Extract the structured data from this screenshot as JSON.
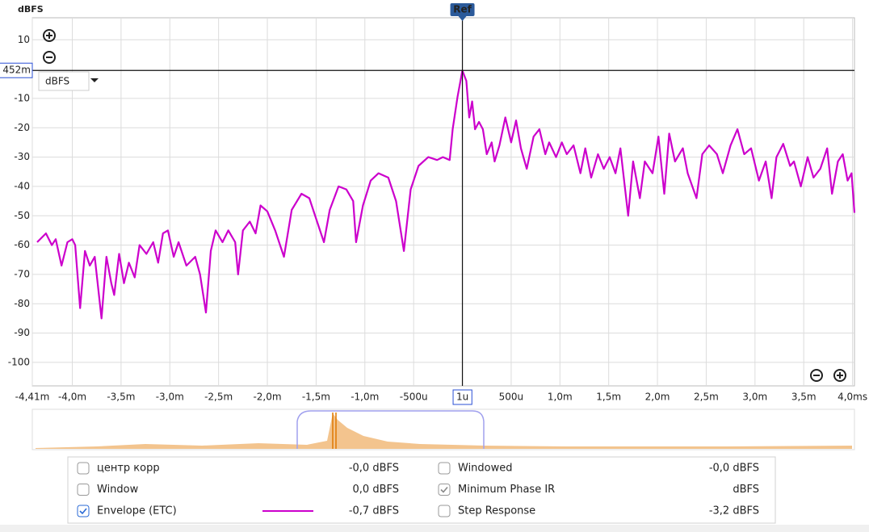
{
  "chart_data": {
    "type": "line",
    "y_label": "dBFS",
    "ref_label": "Ref",
    "dropdown": "dBFS",
    "cursor": {
      "x": 0,
      "y": -0.452,
      "y_label": "452m"
    },
    "xlim": [
      -4.41,
      4.02
    ],
    "ylim": [
      -108,
      17.5
    ],
    "xticks": [
      {
        "value": -4.41,
        "label": "-4,41m"
      },
      {
        "value": -4.0,
        "label": "-4,0m"
      },
      {
        "value": -3.5,
        "label": "-3,5m"
      },
      {
        "value": -3.0,
        "label": "-3,0m"
      },
      {
        "value": -2.5,
        "label": "-2,5m"
      },
      {
        "value": -2.0,
        "label": "-2,0m"
      },
      {
        "value": -1.5,
        "label": "-1,5m"
      },
      {
        "value": -1.0,
        "label": "-1,0m"
      },
      {
        "value": -0.5,
        "label": "-500u"
      },
      {
        "value": 0.001,
        "label": "1u",
        "boxed": true
      },
      {
        "value": 0.5,
        "label": "500u"
      },
      {
        "value": 1.0,
        "label": "1,0m"
      },
      {
        "value": 1.5,
        "label": "1,5m"
      },
      {
        "value": 2.0,
        "label": "2,0m"
      },
      {
        "value": 2.5,
        "label": "2,5m"
      },
      {
        "value": 3.0,
        "label": "3,0m"
      },
      {
        "value": 3.5,
        "label": "3,5m"
      },
      {
        "value": 4.0,
        "label": "4,0ms"
      }
    ],
    "yticks": [
      10,
      -10,
      -20,
      -30,
      -40,
      -50,
      -60,
      -70,
      -80,
      -90,
      -100
    ],
    "grid": true,
    "x": [
      -4.36,
      -4.27,
      -4.21,
      -4.17,
      -4.11,
      -4.05,
      -4.0,
      -3.97,
      -3.92,
      -3.87,
      -3.82,
      -3.77,
      -3.7,
      -3.65,
      -3.6,
      -3.57,
      -3.52,
      -3.47,
      -3.42,
      -3.36,
      -3.31,
      -3.24,
      -3.17,
      -3.12,
      -3.07,
      -3.02,
      -2.96,
      -2.91,
      -2.83,
      -2.74,
      -2.69,
      -2.63,
      -2.58,
      -2.53,
      -2.46,
      -2.4,
      -2.33,
      -2.3,
      -2.25,
      -2.18,
      -2.12,
      -2.07,
      -2.0,
      -1.92,
      -1.83,
      -1.75,
      -1.65,
      -1.57,
      -1.49,
      -1.42,
      -1.36,
      -1.27,
      -1.19,
      -1.12,
      -1.09,
      -1.02,
      -0.94,
      -0.86,
      -0.76,
      -0.68,
      -0.6,
      -0.53,
      -0.45,
      -0.35,
      -0.26,
      -0.2,
      -0.13,
      -0.1,
      -0.05,
      0,
      0.04,
      0.07,
      0.1,
      0.13,
      0.17,
      0.21,
      0.25,
      0.3,
      0.33,
      0.38,
      0.44,
      0.5,
      0.55,
      0.6,
      0.66,
      0.73,
      0.79,
      0.85,
      0.89,
      0.96,
      1.02,
      1.07,
      1.14,
      1.21,
      1.26,
      1.32,
      1.39,
      1.45,
      1.51,
      1.57,
      1.62,
      1.7,
      1.75,
      1.82,
      1.87,
      1.95,
      2.01,
      2.07,
      2.12,
      2.18,
      2.26,
      2.31,
      2.4,
      2.46,
      2.53,
      2.61,
      2.67,
      2.75,
      2.82,
      2.89,
      2.96,
      3.04,
      3.11,
      3.17,
      3.22,
      3.29,
      3.36,
      3.4,
      3.47,
      3.54,
      3.6,
      3.67,
      3.74,
      3.79,
      3.85,
      3.9,
      3.95,
      3.99,
      4.02
    ],
    "series": [
      {
        "name": "Envelope (ETC)",
        "color": "#cc00cc",
        "checked": true,
        "legend_value": "-0,7 dBFS",
        "values": [
          -59,
          -56,
          -60,
          -58,
          -67,
          -59,
          -58,
          -60,
          -81.5,
          -62,
          -67,
          -64,
          -85,
          -64,
          -73,
          -77,
          -63,
          -73,
          -66,
          -71,
          -60,
          -63,
          -59,
          -66,
          -56,
          -55,
          -64,
          -59,
          -67,
          -64,
          -70,
          -83,
          -62,
          -55,
          -59,
          -55,
          -59,
          -70,
          -55,
          -52,
          -56,
          -46.5,
          -48.5,
          -55,
          -64,
          -48,
          -42.5,
          -44,
          -52,
          -59,
          -48,
          -40,
          -41,
          -45,
          -59,
          -46.5,
          -38,
          -35.5,
          -37,
          -45,
          -62,
          -41,
          -33,
          -30,
          -31,
          -30,
          -31,
          -20.5,
          -9.5,
          -0.5,
          -4,
          -16.5,
          -11,
          -20.5,
          -18,
          -20.5,
          -29,
          -25,
          -31.5,
          -26,
          -16.5,
          -25,
          -17.5,
          -27,
          -34,
          -23,
          -20.5,
          -29,
          -25,
          -30,
          -25,
          -29,
          -26,
          -35.5,
          -27,
          -37,
          -29,
          -34,
          -30,
          -35.5,
          -27,
          -50,
          -31.5,
          -44,
          -31.5,
          -35.5,
          -23,
          -42.5,
          -22,
          -31.5,
          -27,
          -35.5,
          -44,
          -29,
          -26,
          -29,
          -35.5,
          -26,
          -20.5,
          -29,
          -27,
          -38,
          -31.5,
          -44,
          -30,
          -25.5,
          -33,
          -31.5,
          -40,
          -30,
          -37,
          -34,
          -27,
          -42.5,
          -31.5,
          -29,
          -38,
          -35.5,
          -49
        ]
      }
    ]
  },
  "traces_panel": [
    {
      "name": "центр корр",
      "value": "-0,0 dBFS",
      "color": "#e07800",
      "checked": false
    },
    {
      "name": "Window",
      "value": "0,0 dBFS",
      "color": "#2020e0",
      "checked": false
    },
    {
      "name": "Windowed",
      "value": "-0,0 dBFS",
      "color": "#f0a800",
      "checked": false
    },
    {
      "name": "Minimum Phase IR",
      "value": "dBFS",
      "color": "#9a9a9a",
      "checked": true,
      "disabled": true
    },
    {
      "name": "Step Response",
      "value": "-3,2 dBFS",
      "color": "#008b8b",
      "checked": false
    }
  ]
}
